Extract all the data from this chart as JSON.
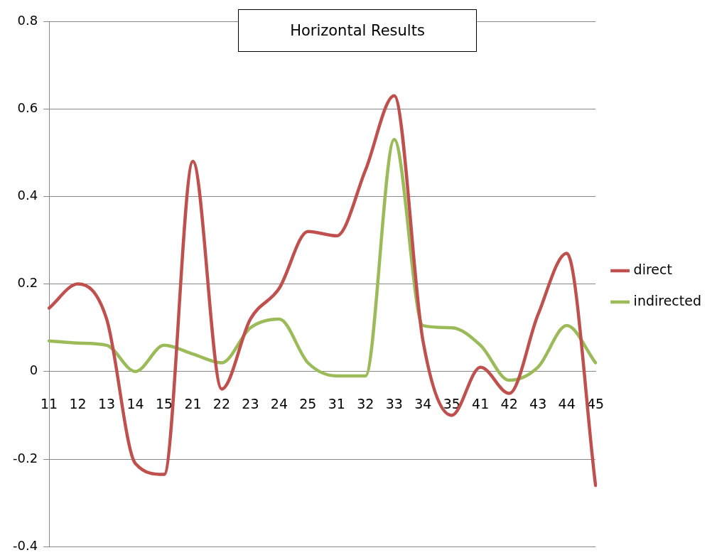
{
  "chart_data": {
    "type": "line",
    "title": "Horizontal Results",
    "categories": [
      "11",
      "12",
      "13",
      "14",
      "15",
      "21",
      "22",
      "23",
      "24",
      "25",
      "31",
      "32",
      "33",
      "34",
      "35",
      "41",
      "42",
      "43",
      "44",
      "45"
    ],
    "series": [
      {
        "name": "direct",
        "color": "#c0504d",
        "values": [
          0.145,
          0.2,
          0.12,
          -0.21,
          -0.235,
          0.48,
          -0.04,
          0.12,
          0.19,
          0.32,
          0.31,
          0.46,
          0.63,
          0.07,
          -0.1,
          0.01,
          -0.05,
          0.13,
          0.27,
          -0.26
        ]
      },
      {
        "name": "indirected",
        "color": "#9bbb59",
        "values": [
          0.07,
          0.065,
          0.06,
          0,
          0.06,
          0.04,
          0.02,
          0.1,
          0.12,
          0.02,
          -0.01,
          -0.01,
          0.53,
          0.105,
          0.1,
          0.06,
          -0.02,
          0.01,
          0.105,
          0.02
        ]
      }
    ],
    "ylim": [
      -0.4,
      0.8
    ],
    "yticks": [
      -0.4,
      -0.2,
      0,
      0.2,
      0.4,
      0.6,
      0.8
    ],
    "grid": "y",
    "legend": "right",
    "marker": "none",
    "line_style": "solid"
  }
}
